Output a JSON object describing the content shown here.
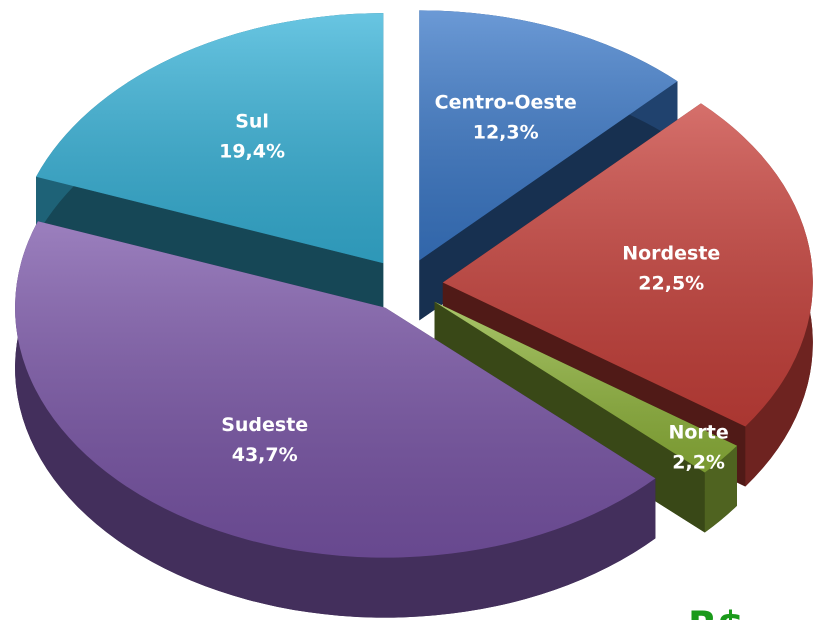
{
  "chart_data": {
    "type": "pie",
    "categories": [
      "Centro-Oeste",
      "Nordeste",
      "Norte",
      "Sudeste",
      "Sul"
    ],
    "values": [
      12.3,
      22.5,
      2.2,
      43.7,
      19.4
    ],
    "value_labels": [
      "12,3%",
      "22,5%",
      "2,2%",
      "43,7%",
      "19,4%"
    ],
    "colors": [
      "#3a78c8",
      "#c8403a",
      "#8fb43a",
      "#7a55a8",
      "#36b2d8"
    ],
    "annotation": "R$",
    "explode": true,
    "three_d": true
  }
}
